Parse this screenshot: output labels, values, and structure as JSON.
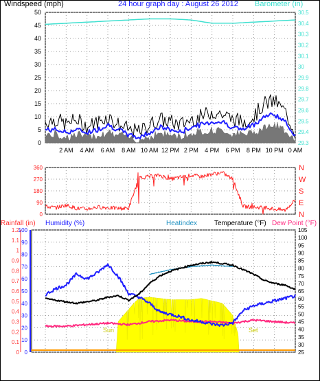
{
  "header": {
    "left_label": "Windspeed (mph)",
    "title": "24 hour graph day : August 26 2012",
    "right_label": "Barometer (in)"
  },
  "colors": {
    "wind_avg": "#4a4a4a",
    "wind_gust": "#000000",
    "wind_avg_line": "#2020ff",
    "barometer": "#40e0d0",
    "direction": "#ff2020",
    "rain": "#ff3030",
    "humidity": "#2020ff",
    "heatindex": "#1e90c0",
    "temperature": "#000000",
    "dewpoint": "#ff2a80",
    "solar": "#ffff00",
    "sun_text": "#c8c800"
  },
  "chart_data": [
    {
      "type": "line",
      "name": "wind-barometer",
      "x_ticks": [
        "2 AM",
        "4 AM",
        "6 AM",
        "8 AM",
        "10 AM",
        "12 PM",
        "2 PM",
        "4 PM",
        "6 PM",
        "8 PM",
        "10 PM",
        "0 AM"
      ],
      "xlabel": "",
      "ylabel": "Windspeed (mph)",
      "ylim": [
        0,
        50
      ],
      "y_ticks": [
        "0",
        "5",
        "10",
        "15",
        "20",
        "25",
        "30",
        "35",
        "40",
        "45",
        "50"
      ],
      "y2label": "Barometer (in)",
      "y2lim": [
        29.3,
        30.5
      ],
      "y2_ticks": [
        "29.3",
        "29.4",
        "29.5",
        "29.6",
        "29.7",
        "29.8",
        "29.9",
        "30",
        "30.1",
        "30.2",
        "30.3",
        "30.4",
        "30.5"
      ],
      "grid": true,
      "series": [
        {
          "name": "",
          "style": "gust",
          "x": [
            0,
            1,
            2,
            3,
            4,
            5,
            6,
            7,
            8,
            9,
            10,
            11,
            12,
            13,
            14,
            15,
            16,
            17,
            18,
            19,
            20,
            21,
            22,
            23,
            24
          ],
          "values": [
            8,
            9,
            7,
            9,
            6,
            8,
            10,
            7,
            5,
            4,
            7,
            9,
            8,
            7,
            9,
            10,
            12,
            11,
            9,
            8,
            10,
            15,
            16,
            12,
            4
          ]
        },
        {
          "name": "",
          "style": "avg",
          "x": [
            0,
            1,
            2,
            3,
            4,
            5,
            6,
            7,
            8,
            9,
            10,
            11,
            12,
            13,
            14,
            15,
            16,
            17,
            18,
            19,
            20,
            21,
            22,
            23,
            24
          ],
          "values": [
            5,
            5,
            4,
            5,
            4,
            5,
            7,
            5,
            3,
            2,
            4,
            6,
            5,
            4,
            6,
            7,
            8,
            8,
            6,
            5,
            7,
            10,
            11,
            8,
            3
          ]
        },
        {
          "name": "",
          "style": "baro",
          "x": [
            0,
            2,
            4,
            6,
            8,
            10,
            12,
            14,
            16,
            18,
            20,
            22,
            24
          ],
          "values": [
            30.39,
            30.4,
            30.41,
            30.42,
            30.43,
            30.44,
            30.44,
            30.43,
            30.4,
            30.4,
            30.41,
            30.42,
            30.43
          ]
        }
      ]
    },
    {
      "type": "line",
      "name": "wind-direction",
      "xlabel": "",
      "ylabel": "",
      "ylim": [
        0,
        360
      ],
      "y_ticks": [
        "0",
        "90",
        "180",
        "270",
        "360"
      ],
      "y2_ticks": [
        "N",
        "W",
        "S",
        "E",
        "N"
      ],
      "series": [
        {
          "name": "",
          "x": [
            0,
            1,
            2,
            3,
            4,
            5,
            6,
            7,
            8,
            9,
            10,
            11,
            12,
            13,
            14,
            15,
            16,
            17,
            18,
            19,
            20,
            21,
            22,
            23,
            24
          ],
          "values": [
            60,
            50,
            70,
            45,
            40,
            55,
            50,
            45,
            45,
            280,
            290,
            300,
            270,
            285,
            300,
            290,
            310,
            320,
            270,
            60,
            55,
            50,
            40,
            30,
            110
          ]
        }
      ]
    },
    {
      "type": "line",
      "name": "temp-humidity",
      "xlabel": "",
      "ylabel": "",
      "rain_label": "Rainfall (in)",
      "humidity_label": "Humidity (%)",
      "heatindex_label": "Heatindex",
      "temperature_label": "Temperature (°F)",
      "dewpoint_label": "Dew Point (°F)",
      "rain_ticks": [
        "0",
        "0.1",
        "0.2",
        "0.3",
        "0.4",
        "0.5",
        "0.6",
        "0.7",
        "0.8",
        "0.9",
        "1",
        "1.1",
        "1.2"
      ],
      "humidity_ticks": [
        "0",
        "10",
        "20",
        "30",
        "40",
        "50",
        "60",
        "70",
        "80",
        "90",
        "100"
      ],
      "temp_ticks": [
        "25",
        "30",
        "35",
        "40",
        "45",
        "50",
        "55",
        "60",
        "65",
        "70",
        "75",
        "80",
        "85",
        "90",
        "95",
        "100",
        "105"
      ],
      "ylim_humidity": [
        0,
        100
      ],
      "ylim_temp": [
        25,
        105
      ],
      "sunrise_label": "Sun",
      "sunset_label": "Set",
      "series": [
        {
          "name": "",
          "style": "temperature",
          "x": [
            0,
            1,
            2,
            3,
            4,
            5,
            6,
            7,
            8,
            9,
            10,
            11,
            12,
            13,
            14,
            15,
            16,
            17,
            18,
            19,
            20,
            21,
            22,
            23,
            24
          ],
          "values": [
            60,
            59,
            58,
            57,
            58,
            59,
            61,
            62,
            59,
            63,
            70,
            75,
            78,
            80,
            82,
            83,
            84,
            83,
            82,
            79,
            76,
            72,
            70,
            69,
            66
          ]
        },
        {
          "name": "",
          "style": "heatindex",
          "x": [
            10,
            12,
            14,
            16,
            18
          ],
          "values": [
            76,
            79,
            81,
            82,
            81
          ]
        },
        {
          "name": "",
          "style": "humidity",
          "x": [
            0,
            1,
            2,
            3,
            4,
            5,
            6,
            7,
            8,
            9,
            10,
            11,
            12,
            13,
            14,
            15,
            16,
            17,
            18,
            19,
            20,
            21,
            22,
            23,
            24
          ],
          "values": [
            47,
            52,
            55,
            64,
            60,
            65,
            72,
            62,
            48,
            45,
            40,
            33,
            31,
            29,
            26,
            25,
            23,
            22,
            24,
            34,
            38,
            40,
            42,
            44,
            46
          ]
        },
        {
          "name": "",
          "style": "dewpoint",
          "x": [
            0,
            2,
            4,
            6,
            8,
            10,
            12,
            14,
            16,
            18,
            20,
            22,
            24
          ],
          "values": [
            42,
            42,
            43,
            44,
            43,
            45,
            46,
            45,
            45,
            44,
            46,
            45,
            44
          ]
        },
        {
          "name": "",
          "style": "solar",
          "x": [
            6.8,
            7,
            7.5,
            8,
            8.5,
            9,
            10,
            12,
            14,
            15,
            16,
            17,
            18,
            18.5,
            18.6
          ],
          "values": [
            0,
            25,
            30,
            35,
            40,
            44,
            45,
            43,
            43,
            44,
            42,
            40,
            30,
            15,
            0
          ]
        },
        {
          "name": "",
          "style": "rain",
          "x": [
            0,
            24
          ],
          "values": [
            0,
            0
          ]
        }
      ]
    }
  ]
}
